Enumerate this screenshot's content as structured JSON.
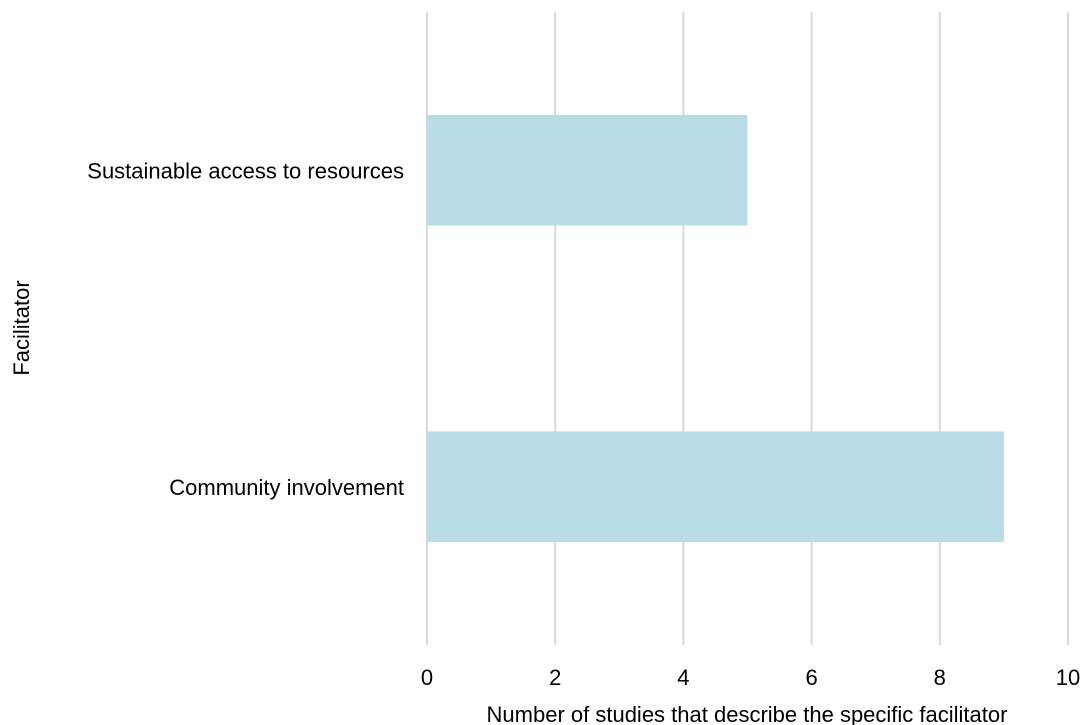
{
  "chart_data": {
    "type": "bar",
    "orientation": "horizontal",
    "categories": [
      "Sustainable access to resources",
      "Community involvement"
    ],
    "values": [
      5,
      9
    ],
    "title": "",
    "xlabel": "Number of studies that describe the specific facilitator",
    "ylabel": "Facilitator",
    "xlim": [
      0,
      10
    ],
    "xticks": [
      "0",
      "2",
      "4",
      "6",
      "8",
      "10"
    ],
    "grid": "vertical",
    "bar_color": "#b8dde7",
    "grid_color": "#d9d9d9"
  }
}
